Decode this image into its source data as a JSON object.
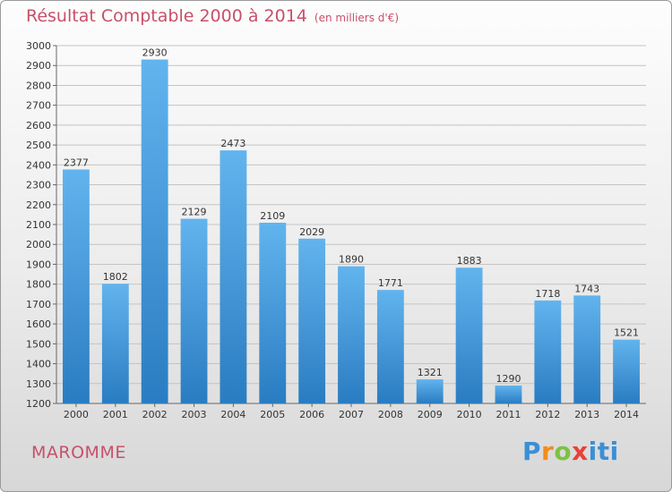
{
  "header": {
    "title": "Résultat Comptable 2000 à 2014",
    "subtitle": "(en milliers d'€)"
  },
  "footer": {
    "commune": "MAROMME",
    "logo": "Proxiti"
  },
  "colors": {
    "bar_top": "#62b4ee",
    "bar_bottom": "#2a7cc2",
    "title": "#c8506a",
    "grid": "#c4c4c4"
  },
  "chart_data": {
    "type": "bar",
    "title": "Résultat Comptable 2000 à 2014",
    "subtitle": "(en milliers d'€)",
    "categories": [
      "2000",
      "2001",
      "2002",
      "2003",
      "2004",
      "2005",
      "2006",
      "2007",
      "2008",
      "2009",
      "2010",
      "2011",
      "2012",
      "2013",
      "2014"
    ],
    "values": [
      2377,
      1802,
      2930,
      2129,
      2473,
      2109,
      2029,
      1890,
      1771,
      1321,
      1883,
      1290,
      1718,
      1743,
      1521
    ],
    "ylim": [
      1200,
      3000
    ],
    "yticks": [
      1200,
      1300,
      1400,
      1500,
      1600,
      1700,
      1800,
      1900,
      2000,
      2100,
      2200,
      2300,
      2400,
      2500,
      2600,
      2700,
      2800,
      2900,
      3000
    ],
    "grid": true,
    "data_labels": true
  }
}
